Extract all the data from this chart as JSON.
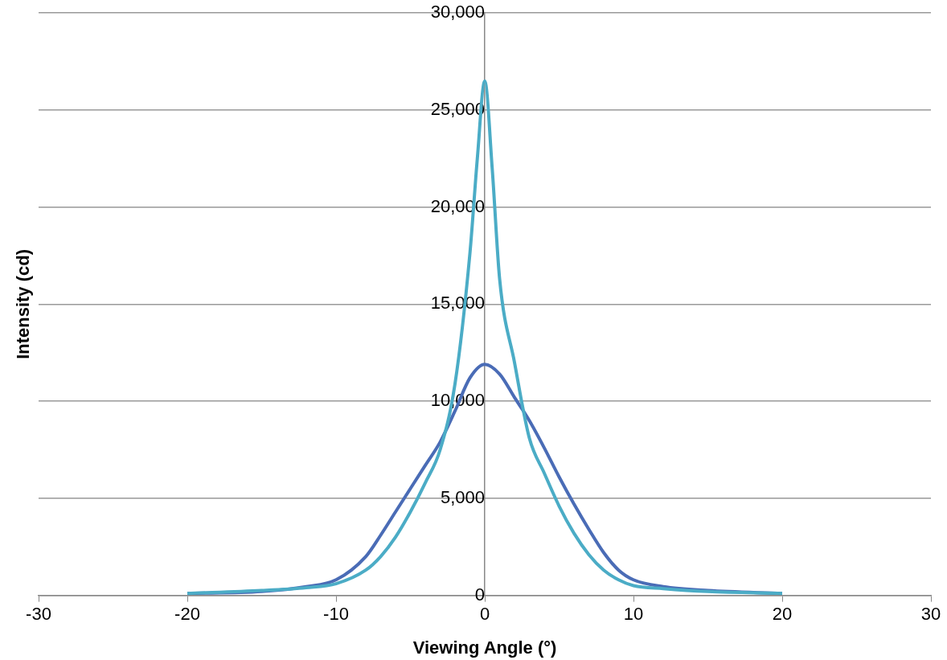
{
  "chart_data": {
    "type": "line",
    "xlabel": "Viewing Angle (°)",
    "ylabel": "Intensity (cd)",
    "xlim": [
      -30,
      30
    ],
    "xticks": [
      -30,
      -20,
      -10,
      0,
      10,
      20,
      30
    ],
    "ylim": [
      0,
      30000
    ],
    "yticks": [
      0,
      {
        "value": 5000,
        "label": "5,000"
      },
      {
        "value": 10000,
        "label": "10,000"
      },
      {
        "value": 15000,
        "label": "15,000"
      },
      {
        "value": 20000,
        "label": "20,000"
      },
      {
        "value": 25000,
        "label": "25,000"
      },
      {
        "value": 30000,
        "label": "30,000"
      }
    ],
    "grid": "y",
    "legend": false,
    "marker": "none",
    "line_style": "solid",
    "series": [
      {
        "color": "#4bacc6",
        "x": [
          -20,
          -15,
          -12,
          -10,
          -8,
          -7,
          -6,
          -5,
          -4,
          -3,
          -2,
          -1,
          -0.5,
          0,
          0.5,
          1,
          2,
          3,
          4,
          5,
          6,
          7,
          8,
          9,
          10,
          12,
          15,
          20
        ],
        "values": [
          100,
          250,
          400,
          600,
          1300,
          2000,
          3000,
          4300,
          5800,
          7500,
          10900,
          17600,
          22500,
          26500,
          22000,
          16300,
          12000,
          8100,
          6300,
          4600,
          3200,
          2100,
          1300,
          800,
          500,
          350,
          200,
          100
        ]
      },
      {
        "color": "#4a6cb6",
        "x": [
          -20,
          -15,
          -12,
          -10,
          -8,
          -7,
          -6,
          -5,
          -4,
          -3,
          -2,
          -1,
          0,
          1,
          2,
          3,
          4,
          5,
          6,
          7,
          8,
          9,
          10,
          12,
          15,
          20
        ],
        "values": [
          100,
          200,
          450,
          800,
          2000,
          3100,
          4300,
          5500,
          6700,
          7900,
          9500,
          11200,
          11900,
          11400,
          10200,
          9000,
          7600,
          6100,
          4700,
          3400,
          2200,
          1300,
          800,
          450,
          250,
          100
        ]
      }
    ]
  }
}
